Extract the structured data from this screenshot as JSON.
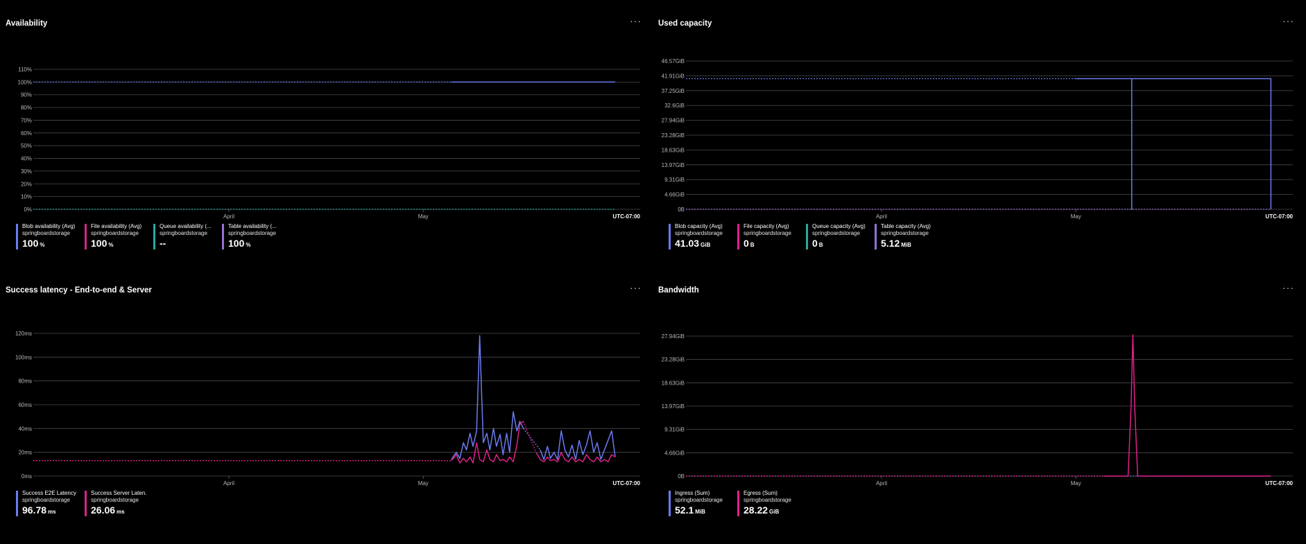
{
  "panels": [
    {
      "title": "Availability",
      "menu": "···",
      "timezone": "UTC-07:00",
      "x_month_labels": [
        {
          "label": "April",
          "t": 0.326
        },
        {
          "label": "May",
          "t": 0.65
        }
      ],
      "legend": [
        {
          "name": "Blob availability (Avg)",
          "resource": "springboardstorage",
          "value": "100",
          "unit": "%",
          "color": "#6b7cf0"
        },
        {
          "name": "File availability (Avg)",
          "resource": "springboardstorage",
          "value": "100",
          "unit": "%",
          "color": "#e0208a"
        },
        {
          "name": "Queue availability (...",
          "resource": "springboardstorage",
          "value": "--",
          "unit": "",
          "color": "#28a8a0"
        },
        {
          "name": "Table availability (...",
          "resource": "springboardstorage",
          "value": "100",
          "unit": "%",
          "color": "#9b6fd6"
        }
      ]
    },
    {
      "title": "Used capacity",
      "menu": "···",
      "timezone": "UTC-07:00",
      "x_month_labels": [
        {
          "label": "April",
          "t": 0.326
        },
        {
          "label": "May",
          "t": 0.65
        }
      ],
      "legend": [
        {
          "name": "Blob capacity (Avg)",
          "resource": "springboardstorage",
          "value": "41.03",
          "unit": "GiB",
          "color": "#6b7cf0"
        },
        {
          "name": "File capacity (Avg)",
          "resource": "springboardstorage",
          "value": "0",
          "unit": "B",
          "color": "#e0208a"
        },
        {
          "name": "Queue capacity (Avg)",
          "resource": "springboardstorage",
          "value": "0",
          "unit": "B",
          "color": "#28a8a0"
        },
        {
          "name": "Table capacity (Avg)",
          "resource": "springboardstorage",
          "value": "5.12",
          "unit": "MiB",
          "color": "#9b6fd6"
        }
      ]
    },
    {
      "title": "Success latency - End-to-end & Server",
      "menu": "···",
      "timezone": "UTC-07:00",
      "x_month_labels": [
        {
          "label": "April",
          "t": 0.326
        },
        {
          "label": "May",
          "t": 0.65
        }
      ],
      "legend": [
        {
          "name": "Success E2E Latency ...",
          "resource": "springboardstorage",
          "value": "96.78",
          "unit": "ms",
          "color": "#6b7cf0"
        },
        {
          "name": "Success Server Laten...",
          "resource": "springboardstorage",
          "value": "26.06",
          "unit": "ms",
          "color": "#e0208a"
        }
      ]
    },
    {
      "title": "Bandwidth",
      "menu": "···",
      "timezone": "UTC-07:00",
      "x_month_labels": [
        {
          "label": "April",
          "t": 0.326
        },
        {
          "label": "May",
          "t": 0.65
        }
      ],
      "legend": [
        {
          "name": "Ingress (Sum)",
          "resource": "springboardstorage",
          "value": "52.1",
          "unit": "MiB",
          "color": "#6b7cf0"
        },
        {
          "name": "Egress (Sum)",
          "resource": "springboardstorage",
          "value": "28.22",
          "unit": "GiB",
          "color": "#e0208a"
        }
      ]
    }
  ],
  "chart_data": [
    {
      "type": "line",
      "title": "Availability",
      "y_ticks": [
        "110%",
        "100%",
        "90%",
        "80%",
        "70%",
        "60%",
        "50%",
        "40%",
        "30%",
        "20%",
        "10%",
        "0%"
      ],
      "ylim": [
        0,
        110
      ],
      "x_range": [
        0,
        1
      ],
      "grid": true,
      "legend_placement": "bottom-left",
      "series": [
        {
          "name": "Blob availability (Avg)",
          "color": "#6b7cf0",
          "style": "dotted",
          "points": [
            [
              0.0,
              100
            ],
            [
              0.697,
              100
            ]
          ]
        },
        {
          "name": "Blob availability (Avg)",
          "color": "#6b7cf0",
          "style": "solid",
          "points": [
            [
              0.697,
              100
            ],
            [
              0.97,
              100
            ]
          ]
        },
        {
          "name": "Queue availability (...",
          "color": "#28a8a0",
          "style": "dotted",
          "points": [
            [
              0.0,
              0
            ],
            [
              0.97,
              0
            ]
          ]
        }
      ]
    },
    {
      "type": "line",
      "title": "Used capacity",
      "y_ticks": [
        "46.57GiB",
        "41.91GiB",
        "37.25GiB",
        "32.6GiB",
        "27.94GiB",
        "23.28GiB",
        "18.63GiB",
        "13.97GiB",
        "9.31GiB",
        "4.66GiB",
        "0B"
      ],
      "ylim": [
        0,
        46.57
      ],
      "x_range": [
        0,
        1
      ],
      "grid": true,
      "legend_placement": "bottom-left",
      "series": [
        {
          "name": "Blob capacity (Avg)",
          "color": "#6b7cf0",
          "style": "dotted",
          "points": [
            [
              0.0,
              41.03
            ],
            [
              0.65,
              41.03
            ]
          ]
        },
        {
          "name": "Blob capacity (Avg)",
          "color": "#6b7cf0",
          "style": "solid",
          "points": [
            [
              0.65,
              41.03
            ],
            [
              0.743,
              41.03
            ],
            [
              0.743,
              0
            ],
            [
              0.743,
              41.03
            ],
            [
              0.975,
              41.03
            ],
            [
              0.975,
              0
            ]
          ]
        },
        {
          "name": "Table capacity (Avg)",
          "color": "#9b6fd6",
          "style": "dotted",
          "points": [
            [
              0.0,
              0
            ],
            [
              0.975,
              0
            ]
          ]
        }
      ]
    },
    {
      "type": "line",
      "title": "Success latency - End-to-end & Server",
      "y_ticks": [
        "120ms",
        "100ms",
        "80ms",
        "60ms",
        "40ms",
        "20ms",
        "0ms"
      ],
      "ylim": [
        0,
        120
      ],
      "x_range": [
        0,
        1
      ],
      "grid": true,
      "legend_placement": "bottom-left",
      "series": [
        {
          "name": "Success E2E Latency ...",
          "color": "#6b7cf0",
          "style": "solid",
          "points": [
            [
              0.697,
              14
            ],
            [
              0.705,
              20
            ],
            [
              0.711,
              15
            ],
            [
              0.717,
              28
            ],
            [
              0.722,
              22
            ],
            [
              0.728,
              36
            ],
            [
              0.733,
              25
            ],
            [
              0.739,
              38
            ],
            [
              0.744,
              118
            ],
            [
              0.75,
              28
            ],
            [
              0.756,
              36
            ],
            [
              0.761,
              22
            ],
            [
              0.767,
              40
            ],
            [
              0.772,
              25
            ],
            [
              0.778,
              35
            ],
            [
              0.783,
              18
            ],
            [
              0.789,
              36
            ],
            [
              0.794,
              20
            ],
            [
              0.8,
              54
            ],
            [
              0.806,
              38
            ],
            [
              0.811,
              46
            ],
            [
              0.817,
              40
            ]
          ]
        },
        {
          "name": "Success E2E Latency ...",
          "color": "#6b7cf0",
          "style": "dotted",
          "points": [
            [
              0.817,
              40
            ],
            [
              0.845,
              22
            ]
          ]
        },
        {
          "name": "Success E2E Latency ...",
          "color": "#6b7cf0",
          "style": "solid",
          "points": [
            [
              0.845,
              22
            ],
            [
              0.851,
              14
            ],
            [
              0.857,
              25
            ],
            [
              0.862,
              15
            ],
            [
              0.868,
              20
            ],
            [
              0.874,
              14
            ],
            [
              0.88,
              38
            ],
            [
              0.886,
              22
            ],
            [
              0.892,
              16
            ],
            [
              0.898,
              26
            ],
            [
              0.904,
              14
            ],
            [
              0.91,
              30
            ],
            [
              0.916,
              18
            ],
            [
              0.922,
              26
            ],
            [
              0.928,
              38
            ],
            [
              0.934,
              20
            ],
            [
              0.94,
              28
            ],
            [
              0.946,
              14
            ],
            [
              0.952,
              22
            ],
            [
              0.958,
              30
            ],
            [
              0.964,
              38
            ],
            [
              0.97,
              16
            ]
          ]
        },
        {
          "name": "Success Server Laten...",
          "color": "#e0208a",
          "style": "dotted",
          "points": [
            [
              0.0,
              13
            ],
            [
              0.697,
              13
            ]
          ]
        },
        {
          "name": "Success Server Laten...",
          "color": "#e0208a",
          "style": "solid",
          "points": [
            [
              0.697,
              13
            ],
            [
              0.705,
              18
            ],
            [
              0.711,
              11
            ],
            [
              0.717,
              15
            ],
            [
              0.722,
              12
            ],
            [
              0.728,
              16
            ],
            [
              0.733,
              11
            ],
            [
              0.739,
              28
            ],
            [
              0.744,
              14
            ],
            [
              0.75,
              12
            ],
            [
              0.756,
              22
            ],
            [
              0.761,
              14
            ],
            [
              0.767,
              12
            ],
            [
              0.772,
              18
            ],
            [
              0.778,
              13
            ],
            [
              0.783,
              14
            ],
            [
              0.789,
              12
            ],
            [
              0.794,
              16
            ],
            [
              0.8,
              12
            ],
            [
              0.806,
              26
            ],
            [
              0.811,
              44
            ],
            [
              0.817,
              46
            ]
          ]
        },
        {
          "name": "Success Server Laten...",
          "color": "#e0208a",
          "style": "dotted",
          "points": [
            [
              0.817,
              46
            ],
            [
              0.838,
              20
            ]
          ]
        },
        {
          "name": "Success Server Laten...",
          "color": "#e0208a",
          "style": "solid",
          "points": [
            [
              0.838,
              20
            ],
            [
              0.845,
              14
            ],
            [
              0.851,
              12
            ],
            [
              0.857,
              16
            ],
            [
              0.862,
              13
            ],
            [
              0.868,
              14
            ],
            [
              0.874,
              12
            ],
            [
              0.88,
              20
            ],
            [
              0.886,
              14
            ],
            [
              0.892,
              12
            ],
            [
              0.898,
              16
            ],
            [
              0.904,
              12
            ],
            [
              0.91,
              14
            ],
            [
              0.916,
              12
            ],
            [
              0.922,
              18
            ],
            [
              0.928,
              14
            ],
            [
              0.934,
              12
            ],
            [
              0.94,
              16
            ],
            [
              0.946,
              12
            ],
            [
              0.952,
              14
            ],
            [
              0.958,
              12
            ],
            [
              0.964,
              18
            ],
            [
              0.97,
              16
            ]
          ]
        }
      ]
    },
    {
      "type": "line",
      "title": "Bandwidth",
      "y_ticks": [
        "27.94GiB",
        "23.28GiB",
        "18.63GiB",
        "13.97GiB",
        "9.31GiB",
        "4.66GiB",
        "0B"
      ],
      "ylim": [
        0,
        27.94
      ],
      "x_range": [
        0,
        1
      ],
      "grid": true,
      "legend_placement": "bottom-left",
      "series": [
        {
          "name": "Ingress (Sum)",
          "color": "#6b7cf0",
          "style": "dotted",
          "points": [
            [
              0.0,
              0
            ],
            [
              0.975,
              0
            ]
          ]
        },
        {
          "name": "Egress (Sum)",
          "color": "#e0208a",
          "style": "dotted",
          "points": [
            [
              0.0,
              0
            ],
            [
              0.697,
              0
            ]
          ]
        },
        {
          "name": "Egress (Sum)",
          "color": "#e0208a",
          "style": "solid",
          "points": [
            [
              0.697,
              0
            ],
            [
              0.737,
              0
            ],
            [
              0.742,
              14
            ],
            [
              0.745,
              28.22
            ],
            [
              0.748,
              14
            ],
            [
              0.753,
              0
            ],
            [
              0.975,
              0
            ]
          ]
        }
      ]
    }
  ]
}
